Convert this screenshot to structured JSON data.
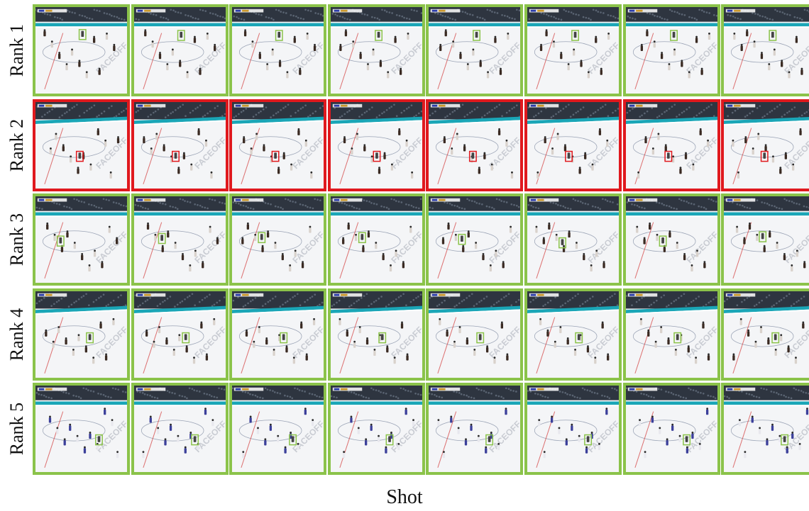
{
  "rows": [
    {
      "label": "Rank 1",
      "status": "match",
      "boxes": [
        [
          0.51,
          0.26
        ],
        [
          0.51,
          0.27
        ],
        [
          0.51,
          0.27
        ],
        [
          0.52,
          0.27
        ],
        [
          0.52,
          0.27
        ],
        [
          0.52,
          0.27
        ],
        [
          0.52,
          0.27
        ],
        [
          0.53,
          0.27
        ]
      ]
    },
    {
      "label": "Rank 2",
      "status": "mismatch",
      "boxes": [
        [
          0.48,
          0.57
        ],
        [
          0.45,
          0.57
        ],
        [
          0.47,
          0.57
        ],
        [
          0.5,
          0.57
        ],
        [
          0.48,
          0.57
        ],
        [
          0.45,
          0.57
        ],
        [
          0.46,
          0.57
        ],
        [
          0.44,
          0.57
        ]
      ]
    },
    {
      "label": "Rank 3",
      "status": "match",
      "boxes": [
        [
          0.27,
          0.46
        ],
        [
          0.3,
          0.43
        ],
        [
          0.32,
          0.42
        ],
        [
          0.34,
          0.42
        ],
        [
          0.36,
          0.44
        ],
        [
          0.38,
          0.48
        ],
        [
          0.4,
          0.46
        ],
        [
          0.42,
          0.41
        ]
      ]
    },
    {
      "label": "Rank 4",
      "status": "match",
      "boxes": [
        [
          0.59,
          0.48
        ],
        [
          0.56,
          0.48
        ],
        [
          0.56,
          0.48
        ],
        [
          0.56,
          0.48
        ],
        [
          0.56,
          0.48
        ],
        [
          0.56,
          0.48
        ],
        [
          0.56,
          0.48
        ],
        [
          0.56,
          0.48
        ]
      ]
    },
    {
      "label": "Rank 5",
      "status": "match",
      "boxes": [
        [
          0.69,
          0.57
        ],
        [
          0.66,
          0.57
        ],
        [
          0.66,
          0.57
        ],
        [
          0.64,
          0.57
        ],
        [
          0.66,
          0.57
        ],
        [
          0.66,
          0.57
        ],
        [
          0.66,
          0.57
        ],
        [
          0.66,
          0.57
        ]
      ]
    }
  ],
  "x_axis_label": "Shot",
  "colors": {
    "match_border": "#8bc34a",
    "mismatch_border": "#e0191e",
    "ice": "#f4f5f7",
    "boards": "#1aa6b7",
    "crowd": "#2e3540",
    "line_red": "#d33b3b"
  }
}
